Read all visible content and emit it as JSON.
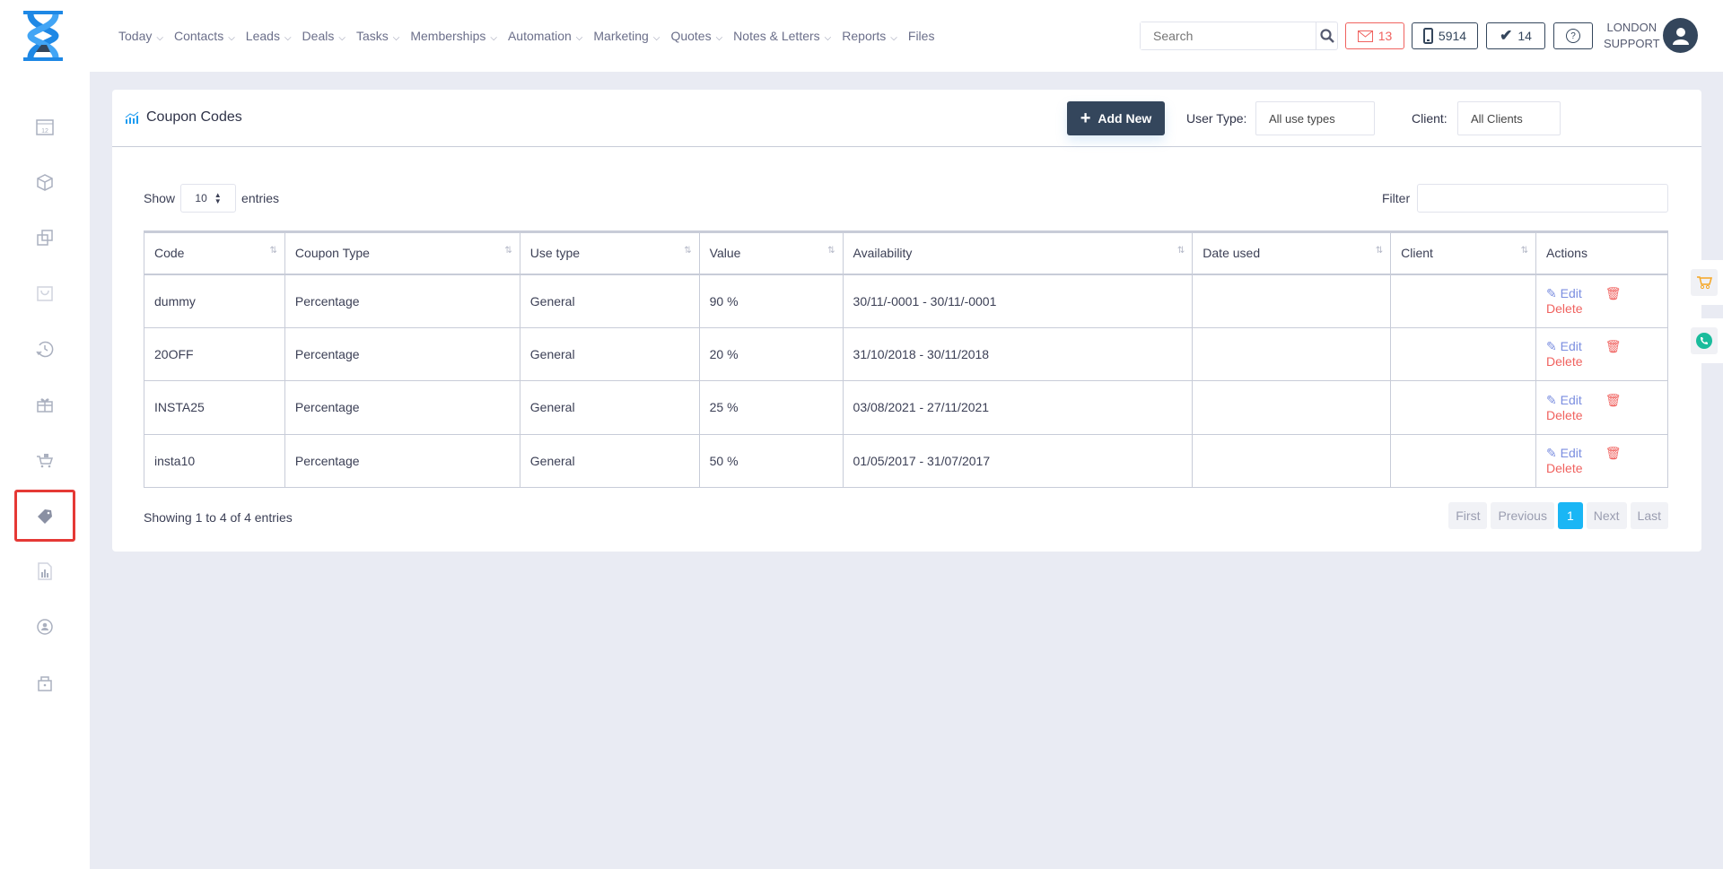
{
  "nav": {
    "items": [
      {
        "label": "Today",
        "dropdown": true
      },
      {
        "label": "Contacts",
        "dropdown": true
      },
      {
        "label": "Leads",
        "dropdown": true
      },
      {
        "label": "Deals",
        "dropdown": true
      },
      {
        "label": "Tasks",
        "dropdown": true
      },
      {
        "label": "Memberships",
        "dropdown": true
      },
      {
        "label": "Automation",
        "dropdown": true
      },
      {
        "label": "Marketing",
        "dropdown": true
      },
      {
        "label": "Quotes",
        "dropdown": true
      },
      {
        "label": "Notes & Letters",
        "dropdown": true
      },
      {
        "label": "Reports",
        "dropdown": true
      },
      {
        "label": "Files",
        "dropdown": false
      }
    ],
    "chevron": "⌵"
  },
  "topbar": {
    "search_placeholder": "Search",
    "mail_count": "13",
    "phone_count": "5914",
    "tasks_count": "14",
    "user_line1": "LONDON",
    "user_line2": "SUPPORT",
    "colors": {
      "mail": "#f0625f",
      "dark": "#34465c"
    }
  },
  "sidebar": {
    "items": [
      "calendar-icon",
      "box-icon",
      "copy-icon",
      "basket-icon",
      "history-icon",
      "gift-icon",
      "cart-icon",
      "coupon-icon",
      "report-icon",
      "user-sync-icon",
      "lock-icon"
    ],
    "active": "coupon-icon"
  },
  "page": {
    "title": "Coupon Codes",
    "add_new": "Add New",
    "user_type_label": "User Type:",
    "user_type_value": "All use types",
    "client_label": "Client:",
    "client_value": "All Clients",
    "show_label": "Show",
    "entries_value": "10",
    "entries_label": "entries",
    "filter_label": "Filter"
  },
  "table": {
    "headers": [
      "Code",
      "Coupon Type",
      "Use type",
      "Value",
      "Availability",
      "Date used",
      "Client",
      "Actions"
    ],
    "rows": [
      {
        "code": "dummy",
        "type": "Percentage",
        "use": "General",
        "value": "90 %",
        "availability": "30/11/-0001 - 30/11/-0001",
        "date_used": "",
        "client": ""
      },
      {
        "code": "20OFF",
        "type": "Percentage",
        "use": "General",
        "value": "20 %",
        "availability": "31/10/2018 - 30/11/2018",
        "date_used": "",
        "client": ""
      },
      {
        "code": "INSTA25",
        "type": "Percentage",
        "use": "General",
        "value": "25 %",
        "availability": "03/08/2021 - 27/11/2021",
        "date_used": "",
        "client": ""
      },
      {
        "code": "insta10",
        "type": "Percentage",
        "use": "General",
        "value": "50 %",
        "availability": "01/05/2017 - 31/07/2017",
        "date_used": "",
        "client": ""
      }
    ],
    "edit_label": "Edit",
    "delete_label": "Delete"
  },
  "footer": {
    "info": "Showing 1 to 4 of 4 entries",
    "pager": {
      "first": "First",
      "previous": "Previous",
      "current": "1",
      "next": "Next",
      "last": "Last"
    }
  }
}
